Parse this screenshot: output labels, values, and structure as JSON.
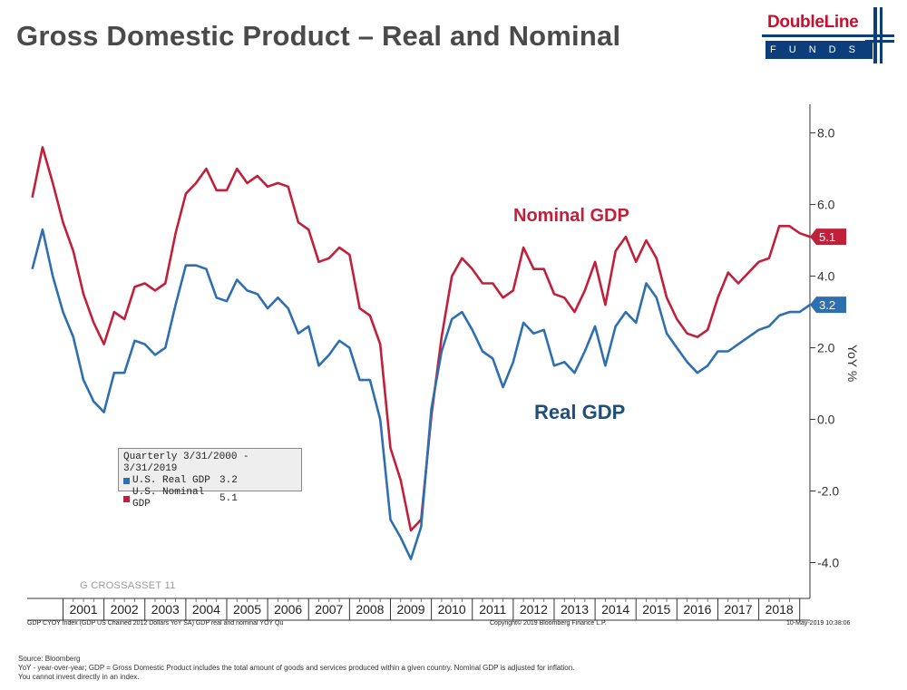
{
  "header": {
    "title": "Gross Domestic Product – Real and Nominal",
    "logo_word": "DoubleLine",
    "logo_funds": "FUNDS",
    "brand_red": "#c8102e",
    "brand_blue": "#0b3e7a"
  },
  "chart_data": {
    "type": "line",
    "ylabel": "YoY %",
    "ylim": [
      -5,
      8.8
    ],
    "yticks": [
      8.0,
      6.0,
      4.0,
      2.0,
      0.0,
      -2.0,
      -4.0
    ],
    "ytick_labels": [
      "8.0",
      "6.0",
      "4.0",
      "2.0",
      "0.0",
      "-2.0",
      "-4.0"
    ],
    "xlim": [
      2000.125,
      2019.25
    ],
    "year_labels": [
      "2001",
      "2002",
      "2003",
      "2004",
      "2005",
      "2006",
      "2007",
      "2008",
      "2009",
      "2010",
      "2011",
      "2012",
      "2013",
      "2014",
      "2015",
      "2016",
      "2017",
      "2018"
    ],
    "x_start": 2000.25,
    "x_step": 0.25,
    "series": [
      {
        "name": "Nominal GDP",
        "color": "#c0203a",
        "end_label": "5.1",
        "values": [
          6.2,
          7.6,
          6.6,
          5.5,
          4.7,
          3.5,
          2.7,
          2.1,
          3.0,
          2.8,
          3.7,
          3.8,
          3.6,
          3.8,
          5.2,
          6.3,
          6.6,
          7.0,
          6.4,
          6.4,
          7.0,
          6.6,
          6.8,
          6.5,
          6.6,
          6.5,
          5.5,
          5.3,
          4.4,
          4.5,
          4.8,
          4.6,
          3.1,
          2.9,
          2.1,
          -0.8,
          -1.7,
          -3.1,
          -2.8,
          0.1,
          2.3,
          4.0,
          4.5,
          4.2,
          3.8,
          3.8,
          3.4,
          3.6,
          4.8,
          4.2,
          4.2,
          3.5,
          3.4,
          3.0,
          3.6,
          4.4,
          3.2,
          4.7,
          5.1,
          4.4,
          5.0,
          4.5,
          3.4,
          2.8,
          2.4,
          2.3,
          2.5,
          3.4,
          4.1,
          3.8,
          4.1,
          4.4,
          4.5,
          5.4,
          5.4,
          5.2,
          5.1
        ]
      },
      {
        "name": "Real GDP",
        "color": "#2e6fb0",
        "end_label": "3.2",
        "values": [
          4.2,
          5.3,
          4.0,
          3.0,
          2.3,
          1.1,
          0.5,
          0.2,
          1.3,
          1.3,
          2.2,
          2.1,
          1.8,
          2.0,
          3.2,
          4.3,
          4.3,
          4.2,
          3.4,
          3.3,
          3.9,
          3.6,
          3.5,
          3.1,
          3.4,
          3.1,
          2.4,
          2.6,
          1.5,
          1.8,
          2.2,
          2.0,
          1.1,
          1.1,
          0.0,
          -2.8,
          -3.3,
          -3.9,
          -3.0,
          0.3,
          1.9,
          2.8,
          3.0,
          2.5,
          1.9,
          1.7,
          0.9,
          1.6,
          2.7,
          2.4,
          2.5,
          1.5,
          1.6,
          1.3,
          1.9,
          2.6,
          1.5,
          2.6,
          3.0,
          2.7,
          3.8,
          3.4,
          2.4,
          2.0,
          1.6,
          1.3,
          1.5,
          1.9,
          1.9,
          2.1,
          2.3,
          2.5,
          2.6,
          2.9,
          3.0,
          3.0,
          3.2
        ]
      }
    ],
    "annotations": {
      "nominal": "Nominal GDP",
      "real": "Real GDP"
    }
  },
  "legend": {
    "title": "Quarterly 3/31/2000 - 3/31/2019",
    "items": [
      {
        "name": "U.S. Real GDP",
        "value": "3.2",
        "color": "#2e6fb0"
      },
      {
        "name": "U.S. Nominal GDP",
        "value": "5.1",
        "color": "#c0203a"
      }
    ]
  },
  "watermark": "G CROSSASSET 11",
  "footer": {
    "left": "GDP CYOY Index (GDP US Chained 2012 Dollars YoY SA) GDP real and nominal YOY  Qu",
    "middle": "Copyright© 2019 Bloomberg Finance L.P.",
    "right": "10-May-2019 10:38:06"
  },
  "notes": {
    "source": "Source: Bloomberg",
    "definition": "YoY - year-over-year; GDP = Gross Domestic Product includes the total amount of goods and services produced within a given country. Nominal GDP is adjusted for inflation.",
    "disclaimer": "You cannot invest directly in an index."
  }
}
